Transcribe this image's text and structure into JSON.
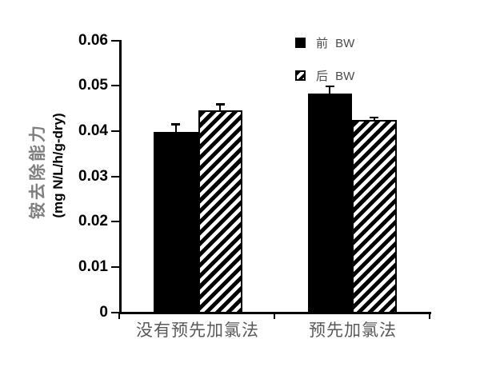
{
  "chart_data": {
    "type": "bar",
    "title": "",
    "categories": [
      "没有预先加氯法",
      "预先加氯法"
    ],
    "series": [
      {
        "name": "前 BW",
        "pattern": "solid-black",
        "values": [
          0.0398,
          0.0482
        ],
        "errors_plus": [
          0.0017,
          0.0017
        ]
      },
      {
        "name": "后 BW",
        "pattern": "diagonal-hatch",
        "values": [
          0.0445,
          0.0425
        ],
        "errors_plus": [
          0.0014,
          0.0005
        ]
      }
    ],
    "ylabel_line1": "铵去除能力",
    "ylabel_line2": "(mg N/L/h/g-dry)",
    "xlabel": "",
    "ylim": [
      0,
      0.06
    ],
    "yticks": [
      0,
      0.01,
      0.02,
      0.03,
      0.04,
      0.05,
      0.06
    ],
    "ytick_labels": [
      "0",
      "0.01",
      "0.02",
      "0.03",
      "0.04",
      "0.05",
      "0.06"
    ],
    "grid": false,
    "legend_position": "top-right",
    "error_bars": "upper-cap-only"
  },
  "legend": {
    "items": [
      {
        "label": "前 BW",
        "marker": "filled-black-square"
      },
      {
        "label": "后 BW",
        "marker": "diagonal-hatch-square"
      }
    ]
  },
  "colors": {
    "background": "#ffffff",
    "bar_fill": "#000000",
    "axis": "#000000",
    "tick_label": "#000000",
    "category_label": "#595959",
    "ylabel_cjk": "#7f7f7f",
    "ylabel_unit": "#000000",
    "legend_text": "#4a4a4a"
  }
}
